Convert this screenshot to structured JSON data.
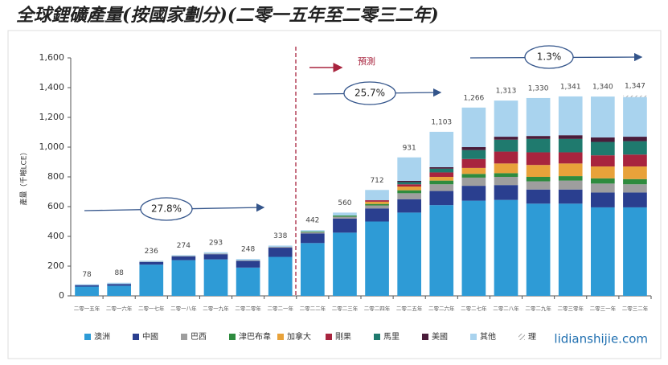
{
  "chart_data": {
    "type": "stacked-bar",
    "title": "全球鋰礦產量(按國家劃分)(二零一五年至二零三二年)",
    "y_label": "產量（千噸LCE）",
    "annotations": [
      "預測",
      "27.8%",
      "25.7%",
      "1.3%",
      "lidianshijie.com"
    ],
    "categories": [
      "二零一五年",
      "二零一六年",
      "二零一七年",
      "二零一八年",
      "二零一九年",
      "二零二零年",
      "二零二一年",
      "二零二二年",
      "二零二三年",
      "二零二四年",
      "二零二五年",
      "二零二六年",
      "二零二七年",
      "二零二八年",
      "二零二九年",
      "二零三零年",
      "二零三一年",
      "二零三二年"
    ],
    "totals": [
      78,
      88,
      236,
      274,
      293,
      248,
      338,
      442,
      560,
      712,
      931,
      1103,
      1266,
      1313,
      1330,
      1341,
      1340,
      1347
    ],
    "total_labels": [
      "78",
      "88",
      "236",
      "274",
      "293",
      "248",
      "338",
      "442",
      "560",
      "712",
      "931",
      "1,103",
      "1,266",
      "1,313",
      "1,330",
      "1,341",
      "1,340",
      "1,347"
    ],
    "series": [
      {
        "name": "澳洲",
        "color": "#2e9bd6",
        "values": [
          62,
          68,
          210,
          240,
          245,
          190,
          262,
          355,
          425,
          500,
          560,
          610,
          640,
          645,
          620,
          620,
          595,
          595
        ]
      },
      {
        "name": "中國",
        "color": "#2a3f8f",
        "values": [
          10,
          12,
          18,
          25,
          35,
          45,
          62,
          65,
          95,
          88,
          90,
          95,
          100,
          100,
          95,
          95,
          100,
          100
        ]
      },
      {
        "name": "巴西",
        "color": "#9e9e9e",
        "values": [
          0,
          0,
          2,
          3,
          4,
          4,
          5,
          8,
          12,
          20,
          40,
          45,
          55,
          55,
          55,
          60,
          60,
          55
        ]
      },
      {
        "name": "津巴布韋",
        "color": "#2e8b3e",
        "values": [
          0,
          0,
          0,
          0,
          0,
          0,
          0,
          5,
          8,
          10,
          20,
          25,
          25,
          25,
          30,
          30,
          35,
          35
        ]
      },
      {
        "name": "加拿大",
        "color": "#e8a23a",
        "values": [
          0,
          0,
          0,
          0,
          0,
          0,
          0,
          0,
          0,
          15,
          25,
          25,
          40,
          65,
          80,
          85,
          80,
          85
        ]
      },
      {
        "name": "剛果",
        "color": "#a8243e",
        "values": [
          0,
          0,
          0,
          0,
          0,
          0,
          0,
          0,
          0,
          10,
          15,
          30,
          60,
          80,
          85,
          75,
          75,
          80
        ]
      },
      {
        "name": "馬里",
        "color": "#1f7a6e",
        "values": [
          0,
          0,
          0,
          0,
          0,
          0,
          0,
          0,
          0,
          0,
          15,
          25,
          60,
          80,
          90,
          90,
          90,
          90
        ]
      },
      {
        "name": "美國",
        "color": "#4a1c3a",
        "values": [
          0,
          0,
          0,
          0,
          0,
          0,
          0,
          0,
          0,
          0,
          8,
          10,
          20,
          20,
          20,
          25,
          30,
          30
        ]
      },
      {
        "name": "其他",
        "color": "#a9d3ee",
        "values": [
          6,
          8,
          6,
          6,
          9,
          9,
          9,
          9,
          20,
          69,
          158,
          238,
          266,
          243,
          255,
          261,
          275,
          267
        ]
      },
      {
        "name": "理",
        "color": "hatch",
        "values": [
          0,
          0,
          0,
          0,
          0,
          0,
          0,
          0,
          0,
          0,
          0,
          0,
          0,
          0,
          0,
          0,
          0,
          10
        ]
      }
    ],
    "ylim": [
      0,
      1600
    ],
    "yticks": [
      0,
      200,
      400,
      600,
      800,
      {
        "value": 1000,
        "label": "1,000"
      },
      {
        "value": 1200,
        "label": "1,200"
      },
      {
        "value": 1400,
        "label": "1,400"
      },
      {
        "value": 1600,
        "label": "1,600"
      }
    ]
  }
}
